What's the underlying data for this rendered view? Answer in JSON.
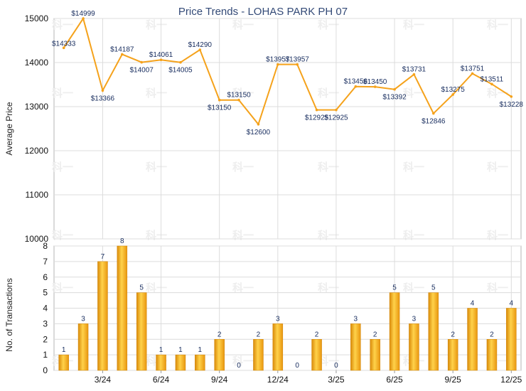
{
  "chart_data": [
    {
      "type": "line",
      "title": "Price Trends - LOHAS PARK PH 07",
      "ylabel": "Average Price",
      "xlabel": "",
      "ylim": [
        10000,
        15000
      ],
      "yticks": [
        "10000",
        "11000",
        "12000",
        "13000",
        "14000",
        "15000"
      ],
      "series": [
        {
          "name": "Average Price",
          "color": "#f5a21b",
          "values": [
            14333,
            14999,
            13366,
            14187,
            14007,
            14061,
            14005,
            14290,
            13150,
            13150,
            12600,
            13957,
            13957,
            12925,
            12925,
            13456,
            13450,
            13392,
            13731,
            12846,
            13275,
            13751,
            13511,
            13228
          ],
          "labels": [
            "$14333",
            "$14999",
            "$13366",
            "$14187",
            "$14007",
            "$14061",
            "$14005",
            "$14290",
            "$13150",
            "$13150",
            "$12600",
            "$13957",
            "$13957",
            "$12925",
            "$12925",
            "$13456",
            "$13450",
            "$13392",
            "$13731",
            "$12846",
            "$13275",
            "$13751",
            "$13511",
            "$13228"
          ]
        }
      ],
      "grid": true
    },
    {
      "type": "bar",
      "title": "",
      "ylabel": "No. of Transactions",
      "xlabel": "",
      "ylim": [
        0,
        8
      ],
      "yticks": [
        "0",
        "1",
        "2",
        "3",
        "4",
        "5",
        "6",
        "7",
        "8"
      ],
      "categories": [
        "",
        "",
        "3/24",
        "",
        "",
        "6/24",
        "",
        "",
        "9/24",
        "",
        "",
        "12/24",
        "",
        "",
        "3/25",
        "",
        "",
        "6/25",
        "",
        "",
        "9/25",
        "",
        "",
        "12/25"
      ],
      "values": [
        1,
        3,
        7,
        8,
        5,
        1,
        1,
        1,
        2,
        0,
        2,
        3,
        0,
        2,
        0,
        3,
        2,
        5,
        3,
        5,
        2,
        4,
        2,
        4
      ],
      "value_labels": [
        "1",
        "3",
        "7",
        "8",
        "5",
        "1",
        "1",
        "1",
        "2",
        "0",
        "2",
        "3",
        "0",
        "2",
        "0",
        "3",
        "2",
        "5",
        "3",
        "5",
        "2",
        "4",
        "2",
        "4"
      ],
      "color": "#f5a21b",
      "grid": true
    }
  ],
  "watermark": "科一"
}
